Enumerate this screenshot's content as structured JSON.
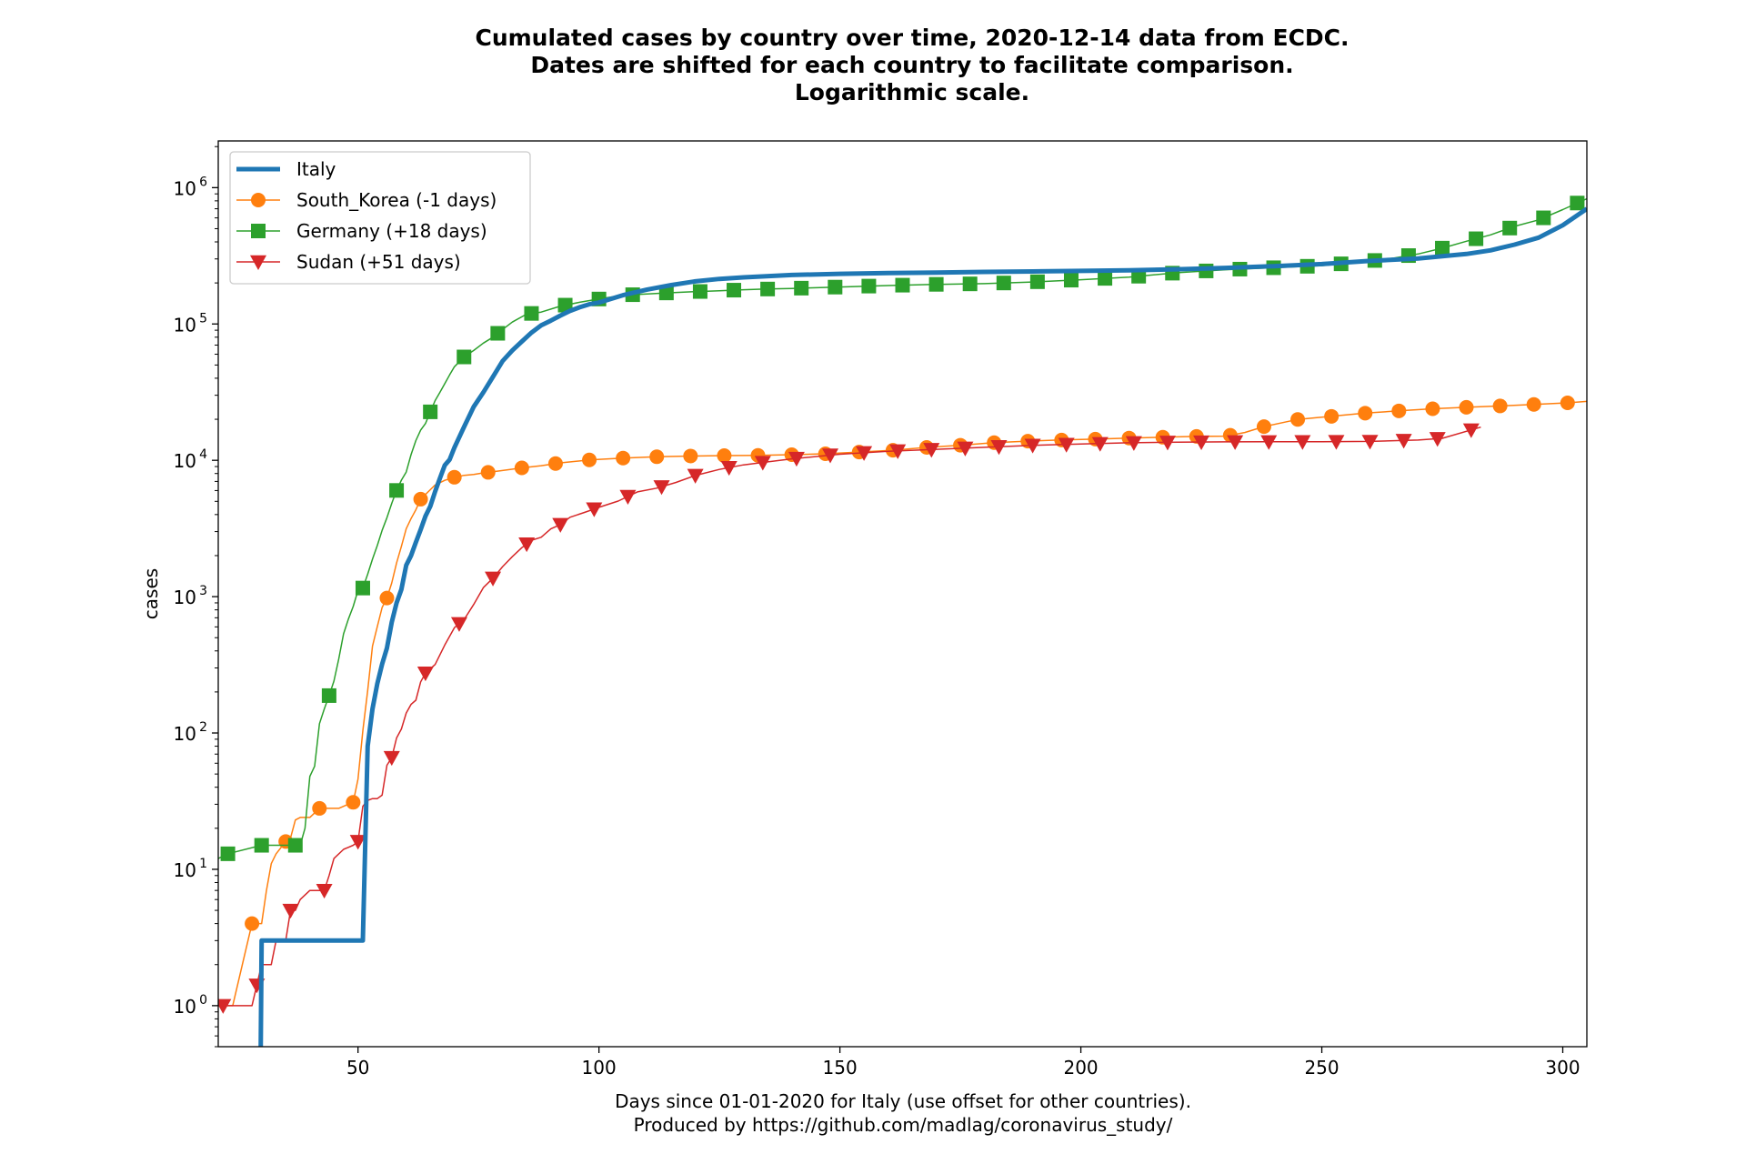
{
  "chart_data": {
    "type": "line",
    "title_lines": [
      "Cumulated cases by country over time, 2020-12-14 data from ECDC.",
      "Dates are shifted for each country to facilitate comparison.",
      "Logarithmic scale."
    ],
    "xlabel_lines": [
      "Days since 01-01-2020 for Italy (use offset for other countries).",
      "Produced by https://github.com/madlag/coronavirus_study/"
    ],
    "ylabel": "cases",
    "y_scale": "log",
    "xlim": [
      21,
      305
    ],
    "ylim": [
      0.5,
      2200000
    ],
    "x_ticks": [
      50,
      100,
      150,
      200,
      250,
      300
    ],
    "y_ticks": [
      1,
      10,
      100,
      1000,
      10000,
      100000,
      1000000
    ],
    "y_tick_labels": [
      "10",
      "10",
      "10",
      "10",
      "10",
      "10",
      "10"
    ],
    "y_tick_exponents": [
      "0",
      "1",
      "2",
      "3",
      "4",
      "5",
      "6"
    ],
    "grid": false,
    "legend_position": "top-left",
    "series": [
      {
        "name": "Italy",
        "color": "#1f77b4",
        "marker": "none",
        "width": 5,
        "x": [
          29.8,
          30,
          31,
          40,
          51,
          52,
          53,
          54,
          55,
          56,
          57,
          58,
          59,
          60,
          61,
          62,
          63,
          64,
          65,
          66,
          67,
          68,
          69,
          70,
          72,
          74,
          76,
          78,
          80,
          82,
          84,
          86,
          88,
          90,
          92,
          94,
          96,
          98,
          100,
          105,
          110,
          115,
          120,
          125,
          130,
          140,
          150,
          160,
          170,
          180,
          190,
          200,
          210,
          220,
          230,
          240,
          250,
          260,
          270,
          280,
          285,
          290,
          295,
          300,
          305
        ],
        "y": [
          0.4,
          3,
          3,
          3,
          3,
          80,
          150,
          230,
          320,
          420,
          650,
          900,
          1130,
          1700,
          2000,
          2500,
          3100,
          3900,
          4600,
          5900,
          7400,
          9200,
          10100,
          12400,
          17600,
          24700,
          31500,
          41000,
          53500,
          63900,
          74400,
          86500,
          97700,
          105800,
          115200,
          124600,
          132500,
          139400,
          143600,
          162500,
          178900,
          192800,
          205400,
          214100,
          219800,
          228700,
          233200,
          236100,
          238500,
          240800,
          242800,
          245100,
          247500,
          252000,
          257700,
          265400,
          275000,
          290000,
          302500,
          326000,
          347000,
          382000,
          430000,
          530000,
          700000
        ]
      },
      {
        "name": "South_Korea (-1 days)",
        "color": "#ff7f0e",
        "marker": "circle",
        "width": 1.5,
        "marker_every": 7,
        "x": [
          21,
          22,
          24,
          26,
          28,
          29,
          30,
          31,
          32,
          33,
          35,
          36,
          37,
          38,
          40,
          42,
          44,
          46,
          48,
          49,
          50,
          51,
          52,
          53,
          54,
          55,
          56,
          57,
          58,
          59,
          60,
          61,
          62,
          63,
          64,
          65,
          66,
          68,
          70,
          72,
          74,
          76,
          78,
          80,
          84,
          88,
          92,
          98,
          105,
          112,
          119,
          126,
          133,
          140,
          147,
          154,
          161,
          168,
          175,
          182,
          189,
          196,
          203,
          210,
          217,
          224,
          230,
          234,
          238,
          245,
          252,
          259,
          266,
          273,
          280,
          287,
          294,
          301,
          305
        ],
        "y": [
          1,
          1,
          1,
          2,
          4,
          4,
          4,
          7,
          11,
          13,
          16,
          17,
          23,
          24,
          24,
          28,
          28,
          28,
          30,
          31,
          46,
          104,
          204,
          433,
          602,
          833,
          977,
          1261,
          1766,
          2337,
          3150,
          3736,
          4335,
          5186,
          5621,
          6088,
          6593,
          7134,
          7513,
          7755,
          7869,
          8086,
          8236,
          8413,
          8799,
          9137,
          9583,
          10062,
          10384,
          10613,
          10752,
          10822,
          10874,
          10991,
          11165,
          11503,
          11852,
          12438,
          12904,
          13479,
          13816,
          14092,
          14305,
          14562,
          14770,
          14980,
          15039,
          16000,
          17665,
          19947,
          21010,
          22176,
          23045,
          23889,
          24476,
          25035,
          25698,
          26385,
          27050
        ]
      },
      {
        "name": "Germany (+18 days)",
        "color": "#2ca02c",
        "marker": "square",
        "width": 1.5,
        "marker_every": 7,
        "x": [
          21,
          23,
          30,
          33,
          35,
          37,
          38,
          39,
          40,
          41,
          42,
          43,
          44,
          45,
          46,
          47,
          48,
          49,
          50,
          51,
          52,
          53,
          54,
          55,
          56,
          57,
          58,
          59,
          60,
          61,
          62,
          63,
          64,
          65,
          66,
          67,
          68,
          69,
          70,
          72,
          74,
          76,
          78,
          80,
          82,
          85,
          88,
          92,
          96,
          100,
          105,
          110,
          115,
          120,
          125,
          130,
          135,
          140,
          150,
          160,
          170,
          180,
          190,
          200,
          210,
          220,
          230,
          240,
          250,
          260,
          265,
          270,
          275,
          280,
          285,
          290,
          295,
          300,
          305
        ],
        "y": [
          12,
          13,
          15,
          15,
          15,
          15,
          15,
          20,
          48,
          57,
          117,
          150,
          188,
          240,
          349,
          534,
          684,
          847,
          1112,
          1156,
          1460,
          1884,
          2369,
          3062,
          3795,
          4838,
          6012,
          7156,
          8198,
          10999,
          13957,
          16662,
          18610,
          22672,
          27436,
          31554,
          36508,
          42288,
          48582,
          57298,
          63929,
          72383,
          80036,
          91159,
          103228,
          118181,
          122171,
          135233,
          144302,
          152438,
          162496,
          166152,
          169575,
          172576,
          175233,
          178281,
          180458,
          182196,
          186839,
          191449,
          195228,
          197523,
          203325,
          211281,
          220859,
          237583,
          249985,
          258480,
          267773,
          289219,
          305000,
          326000,
          360000,
          404000,
          450000,
          520000,
          580000,
          690000,
          830000
        ]
      },
      {
        "name": "Sudan (+51 days)",
        "color": "#d62728",
        "marker": "triangle-down",
        "width": 1.5,
        "marker_every": 7,
        "x": [
          21,
          22,
          23,
          25,
          28,
          30,
          31,
          32,
          33,
          35,
          36,
          37,
          38,
          40,
          42,
          43,
          44,
          45,
          47,
          49,
          50,
          51,
          52,
          53,
          54,
          55,
          56,
          57,
          58,
          59,
          60,
          61,
          62,
          63,
          64,
          66,
          68,
          70,
          72,
          74,
          76,
          78,
          80,
          82,
          84,
          86,
          88,
          90,
          92,
          94,
          97,
          100,
          104,
          108,
          112,
          116,
          120,
          125,
          130,
          140,
          150,
          160,
          170,
          180,
          190,
          200,
          210,
          220,
          230,
          240,
          250,
          260,
          270,
          275,
          283
        ],
        "y": [
          1,
          1,
          1,
          1,
          1,
          2,
          2,
          2,
          3,
          3,
          5,
          5,
          6,
          7,
          7,
          7,
          9,
          12,
          14,
          15,
          16,
          29,
          32,
          33,
          33,
          35,
          58,
          66,
          92,
          107,
          140,
          162,
          174,
          237,
          275,
          318,
          442,
          592,
          678,
          876,
          1164,
          1365,
          1661,
          1964,
          2289,
          2591,
          2728,
          3138,
          3378,
          3820,
          4146,
          4521,
          5026,
          5865,
          6244,
          6879,
          7740,
          8580,
          9257,
          10250,
          11082,
          11644,
          12033,
          12446,
          12889,
          13155,
          13437,
          13592,
          13653,
          13682,
          13706,
          13760,
          14084,
          14500,
          17500
        ]
      }
    ]
  }
}
